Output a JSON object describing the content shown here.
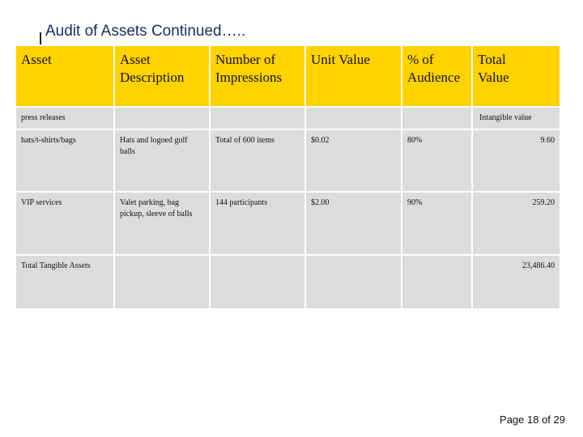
{
  "header": {
    "title": "Audit of Assets  Continued….."
  },
  "table": {
    "columns": [
      "Asset",
      "Asset Description",
      "Number of Impressions",
      "Unit Value",
      "% of Audience",
      "Total Value"
    ],
    "rows": [
      [
        "press releases",
        null,
        null,
        null,
        null,
        "Intangible value"
      ],
      [
        "hats/t-shirts/bags",
        "Hats and logoed golf balls",
        "Total of 600 items",
        "$0.02",
        "80%",
        "9.60"
      ],
      [
        "VIP services",
        "Valet parking, bag pickup, sleeve of balls",
        "144 participants",
        "$2.00",
        "90%",
        "259.20"
      ],
      [
        "Total Tangible Assets",
        null,
        null,
        null,
        null,
        "23,486.40"
      ]
    ]
  },
  "footer": {
    "page": "Page 18 of 29"
  }
}
